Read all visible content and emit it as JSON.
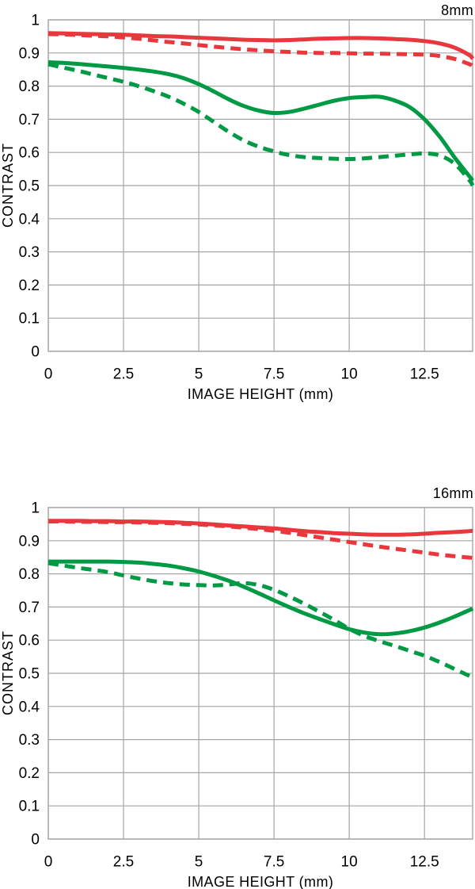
{
  "page": {
    "background": "#ffffff",
    "text_color": "#000000",
    "grid_color": "#a5a5a5",
    "accent_red": "#e8383d",
    "accent_green": "#009944"
  },
  "chart_data": [
    {
      "type": "line",
      "title": "8mm",
      "xlabel": "IMAGE HEIGHT (mm)",
      "ylabel": "CONTRAST",
      "xlim": [
        0,
        14.1
      ],
      "ylim": [
        0,
        1
      ],
      "grid": true,
      "legend": "none",
      "x_tick_values": [
        0,
        2.5,
        5,
        7.5,
        10,
        12.5
      ],
      "x_tick_labels": [
        "0",
        "2.5",
        "5",
        "7.5",
        "10",
        "12.5"
      ],
      "y_tick_values": [
        1,
        0.9,
        0.8,
        0.7,
        0.6,
        0.5,
        0.4,
        0.3,
        0.2,
        0.1,
        0
      ],
      "y_tick_labels": [
        "1",
        "0.9",
        "0.8",
        "0.7",
        "0.6",
        "0.5",
        "0.4",
        "0.3",
        "0.2",
        "0.1",
        "0"
      ],
      "x": [
        0,
        0.5,
        1,
        1.5,
        2,
        2.5,
        3,
        3.5,
        4,
        4.5,
        5,
        5.5,
        6,
        6.5,
        7,
        7.5,
        8,
        8.5,
        9,
        9.5,
        10,
        10.5,
        11,
        11.5,
        12,
        12.5,
        13,
        13.5,
        14,
        14.1
      ],
      "series": [
        {
          "name": "red-solid",
          "color": "#e8383d",
          "line_style": "solid",
          "values": [
            0.96,
            0.959,
            0.958,
            0.957,
            0.956,
            0.955,
            0.953,
            0.951,
            0.95,
            0.948,
            0.946,
            0.944,
            0.942,
            0.94,
            0.939,
            0.938,
            0.939,
            0.941,
            0.943,
            0.944,
            0.945,
            0.945,
            0.944,
            0.942,
            0.94,
            0.936,
            0.929,
            0.916,
            0.893,
            0.882
          ]
        },
        {
          "name": "red-dashed",
          "color": "#e8383d",
          "line_style": "dashed",
          "values": [
            0.957,
            0.956,
            0.954,
            0.952,
            0.95,
            0.947,
            0.943,
            0.938,
            0.933,
            0.929,
            0.924,
            0.919,
            0.915,
            0.911,
            0.908,
            0.905,
            0.903,
            0.901,
            0.9,
            0.9,
            0.899,
            0.898,
            0.898,
            0.897,
            0.896,
            0.895,
            0.891,
            0.882,
            0.866,
            0.861
          ]
        },
        {
          "name": "green-solid",
          "color": "#009944",
          "line_style": "solid",
          "values": [
            0.872,
            0.87,
            0.867,
            0.863,
            0.859,
            0.855,
            0.85,
            0.844,
            0.836,
            0.824,
            0.806,
            0.784,
            0.76,
            0.74,
            0.726,
            0.719,
            0.722,
            0.732,
            0.744,
            0.756,
            0.764,
            0.767,
            0.768,
            0.757,
            0.737,
            0.7,
            0.648,
            0.585,
            0.527,
            0.515
          ]
        },
        {
          "name": "green-dashed",
          "color": "#009944",
          "line_style": "dashed",
          "values": [
            0.866,
            0.856,
            0.846,
            0.835,
            0.824,
            0.813,
            0.8,
            0.785,
            0.768,
            0.747,
            0.722,
            0.692,
            0.662,
            0.636,
            0.617,
            0.603,
            0.592,
            0.586,
            0.583,
            0.581,
            0.58,
            0.582,
            0.586,
            0.59,
            0.594,
            0.597,
            0.591,
            0.566,
            0.515,
            0.5
          ]
        }
      ]
    },
    {
      "type": "line",
      "title": "16mm",
      "xlabel": "IMAGE HEIGHT (mm)",
      "ylabel": "CONTRAST",
      "xlim": [
        0,
        14.1
      ],
      "ylim": [
        0,
        1
      ],
      "grid": true,
      "legend": "none",
      "x_tick_values": [
        0,
        2.5,
        5,
        7.5,
        10,
        12.5
      ],
      "x_tick_labels": [
        "0",
        "2.5",
        "5",
        "7.5",
        "10",
        "12.5"
      ],
      "y_tick_values": [
        1,
        0.9,
        0.8,
        0.7,
        0.6,
        0.5,
        0.4,
        0.3,
        0.2,
        0.1,
        0
      ],
      "y_tick_labels": [
        "1",
        "0.9",
        "0.8",
        "0.7",
        "0.6",
        "0.5",
        "0.4",
        "0.3",
        "0.2",
        "0.1",
        "0"
      ],
      "x": [
        0,
        0.5,
        1,
        1.5,
        2,
        2.5,
        3,
        3.5,
        4,
        4.5,
        5,
        5.5,
        6,
        6.5,
        7,
        7.5,
        8,
        8.5,
        9,
        9.5,
        10,
        10.5,
        11,
        11.5,
        12,
        12.5,
        13,
        13.5,
        14,
        14.1
      ],
      "series": [
        {
          "name": "red-solid",
          "color": "#e8383d",
          "line_style": "solid",
          "values": [
            0.96,
            0.96,
            0.96,
            0.959,
            0.959,
            0.958,
            0.958,
            0.957,
            0.956,
            0.954,
            0.952,
            0.949,
            0.946,
            0.943,
            0.94,
            0.937,
            0.933,
            0.929,
            0.926,
            0.923,
            0.921,
            0.919,
            0.918,
            0.918,
            0.919,
            0.921,
            0.924,
            0.926,
            0.929,
            0.93
          ]
        },
        {
          "name": "red-dashed",
          "color": "#e8383d",
          "line_style": "dashed",
          "values": [
            0.958,
            0.958,
            0.957,
            0.957,
            0.956,
            0.956,
            0.955,
            0.954,
            0.953,
            0.951,
            0.949,
            0.946,
            0.943,
            0.939,
            0.935,
            0.93,
            0.924,
            0.917,
            0.91,
            0.903,
            0.896,
            0.889,
            0.882,
            0.876,
            0.87,
            0.864,
            0.858,
            0.853,
            0.849,
            0.848
          ]
        },
        {
          "name": "green-solid",
          "color": "#009944",
          "line_style": "solid",
          "values": [
            0.837,
            0.837,
            0.837,
            0.837,
            0.837,
            0.836,
            0.834,
            0.83,
            0.825,
            0.817,
            0.807,
            0.794,
            0.779,
            0.761,
            0.741,
            0.72,
            0.7,
            0.681,
            0.664,
            0.648,
            0.633,
            0.623,
            0.618,
            0.62,
            0.627,
            0.638,
            0.653,
            0.671,
            0.691,
            0.695
          ]
        },
        {
          "name": "green-dashed",
          "color": "#009944",
          "line_style": "dashed",
          "values": [
            0.832,
            0.825,
            0.818,
            0.812,
            0.805,
            0.795,
            0.786,
            0.778,
            0.772,
            0.768,
            0.766,
            0.765,
            0.768,
            0.772,
            0.766,
            0.752,
            0.732,
            0.71,
            0.686,
            0.661,
            0.634,
            0.613,
            0.597,
            0.583,
            0.568,
            0.553,
            0.534,
            0.513,
            0.492,
            0.49
          ]
        }
      ]
    }
  ]
}
